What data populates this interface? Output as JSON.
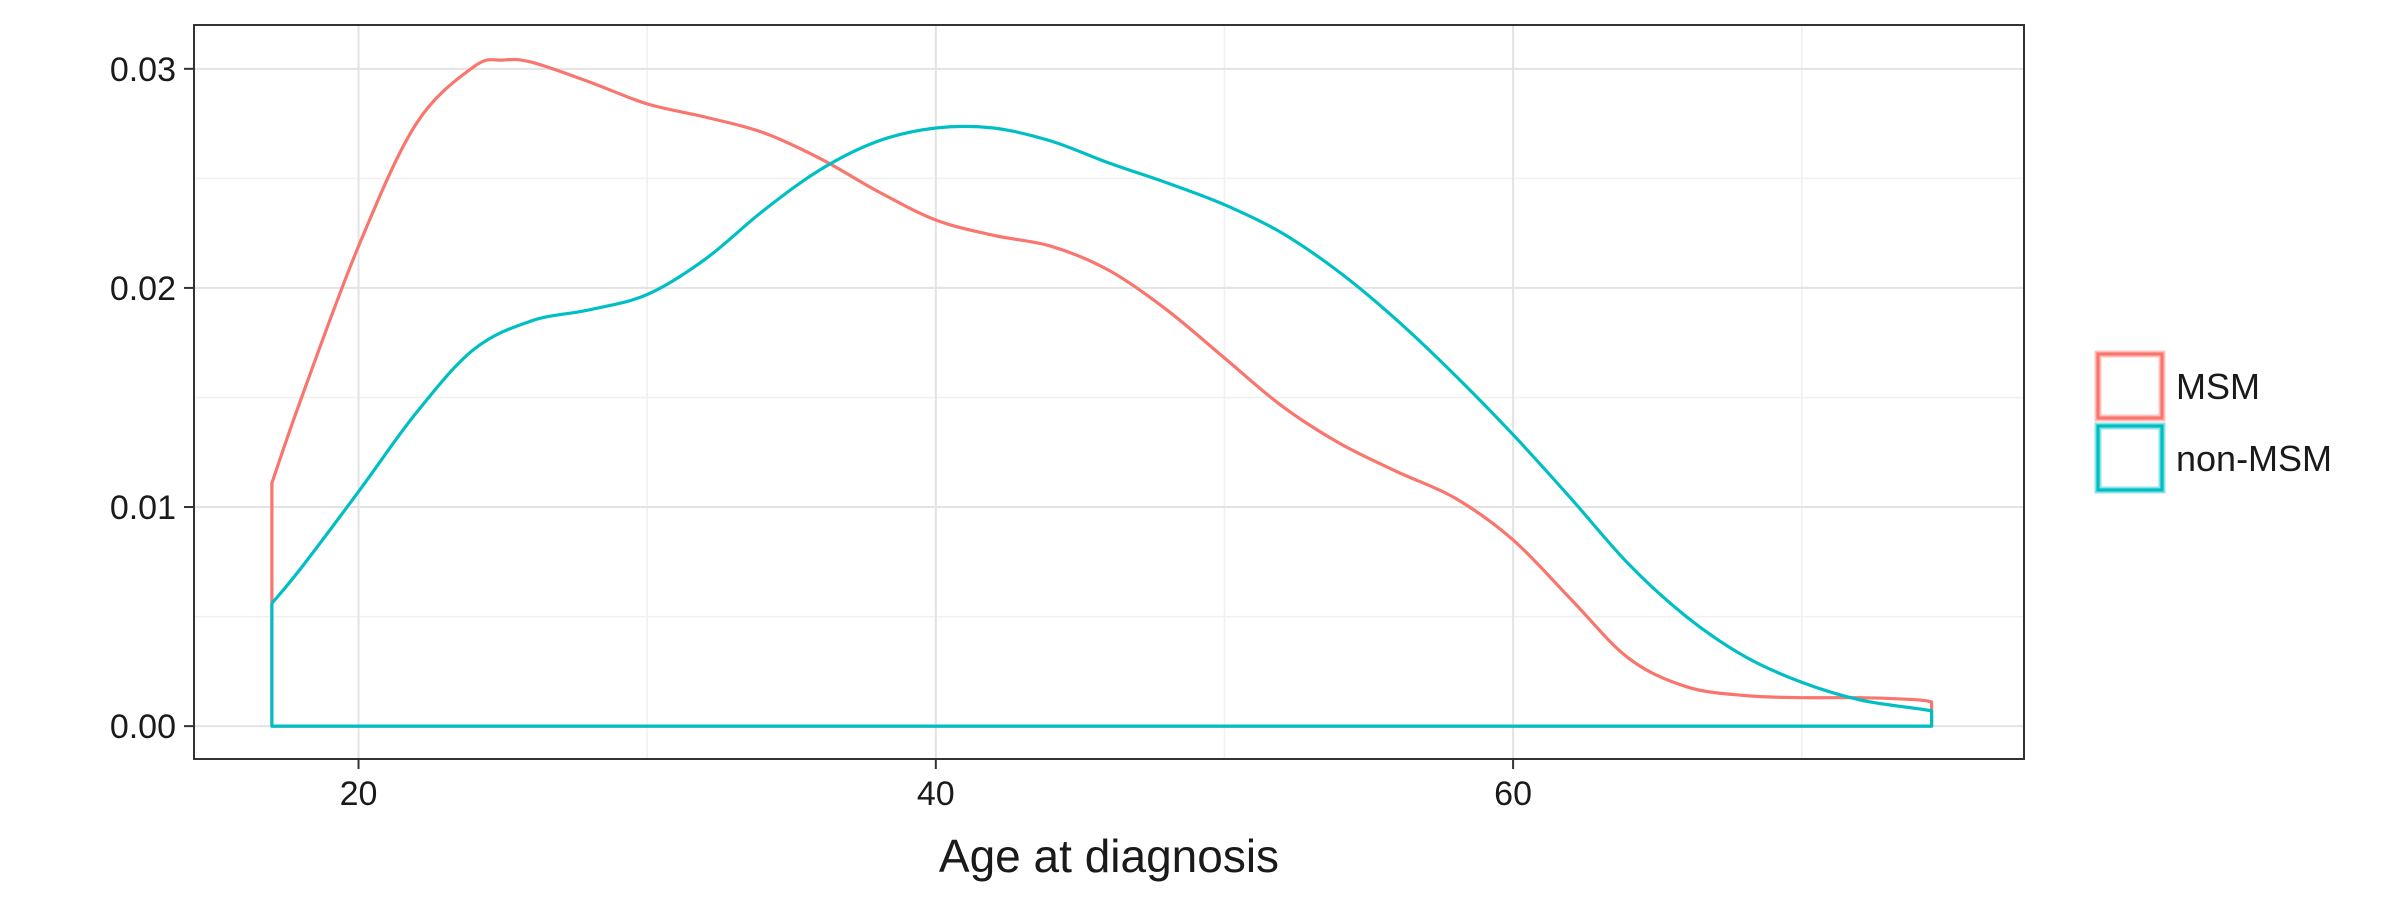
{
  "chart_data": {
    "type": "area",
    "xlabel": "Age at diagnosis",
    "ylabel": "",
    "xlim": [
      14.3,
      77.7
    ],
    "ylim": [
      -0.0015,
      0.032
    ],
    "x_ticks": [
      20,
      40,
      60
    ],
    "y_ticks": [
      0.0,
      0.01,
      0.02,
      0.03
    ],
    "x_tick_labels": [
      "20",
      "40",
      "60"
    ],
    "y_tick_labels": [
      "0.00",
      "0.01",
      "0.02",
      "0.03"
    ],
    "grid": true,
    "legend_position": "right",
    "series": [
      {
        "name": "MSM",
        "color": "#F8766D",
        "x": [
          17,
          18,
          20,
          22,
          24,
          25,
          26,
          28,
          30,
          32,
          34,
          36,
          38,
          40,
          42,
          44,
          46,
          48,
          50,
          52,
          54,
          56,
          58,
          60,
          62,
          64,
          66,
          68,
          70,
          72,
          74,
          74.5
        ],
        "y": [
          0.0111,
          0.0149,
          0.0219,
          0.0275,
          0.0301,
          0.0304,
          0.0303,
          0.0294,
          0.0284,
          0.0278,
          0.0271,
          0.0259,
          0.0244,
          0.0231,
          0.0224,
          0.0219,
          0.0208,
          0.019,
          0.0168,
          0.0146,
          0.0129,
          0.0116,
          0.0104,
          0.0085,
          0.0058,
          0.0031,
          0.0018,
          0.0014,
          0.0013,
          0.0013,
          0.0012,
          0.0011
        ]
      },
      {
        "name": "non-MSM",
        "color": "#00BFC4",
        "x": [
          17,
          18,
          20,
          22,
          24,
          26,
          28,
          30,
          32,
          34,
          36,
          38,
          40,
          42,
          44,
          46,
          48,
          50,
          52,
          54,
          56,
          58,
          60,
          62,
          64,
          66,
          68,
          70,
          72,
          74,
          74.5
        ],
        "y": [
          0.0056,
          0.0072,
          0.0107,
          0.0143,
          0.0172,
          0.0185,
          0.019,
          0.0197,
          0.0213,
          0.0235,
          0.0254,
          0.0267,
          0.0273,
          0.0273,
          0.0267,
          0.0257,
          0.0248,
          0.0238,
          0.0225,
          0.0207,
          0.0185,
          0.016,
          0.0133,
          0.0104,
          0.0074,
          0.005,
          0.0032,
          0.002,
          0.0012,
          0.0008,
          0.0007
        ]
      }
    ]
  }
}
